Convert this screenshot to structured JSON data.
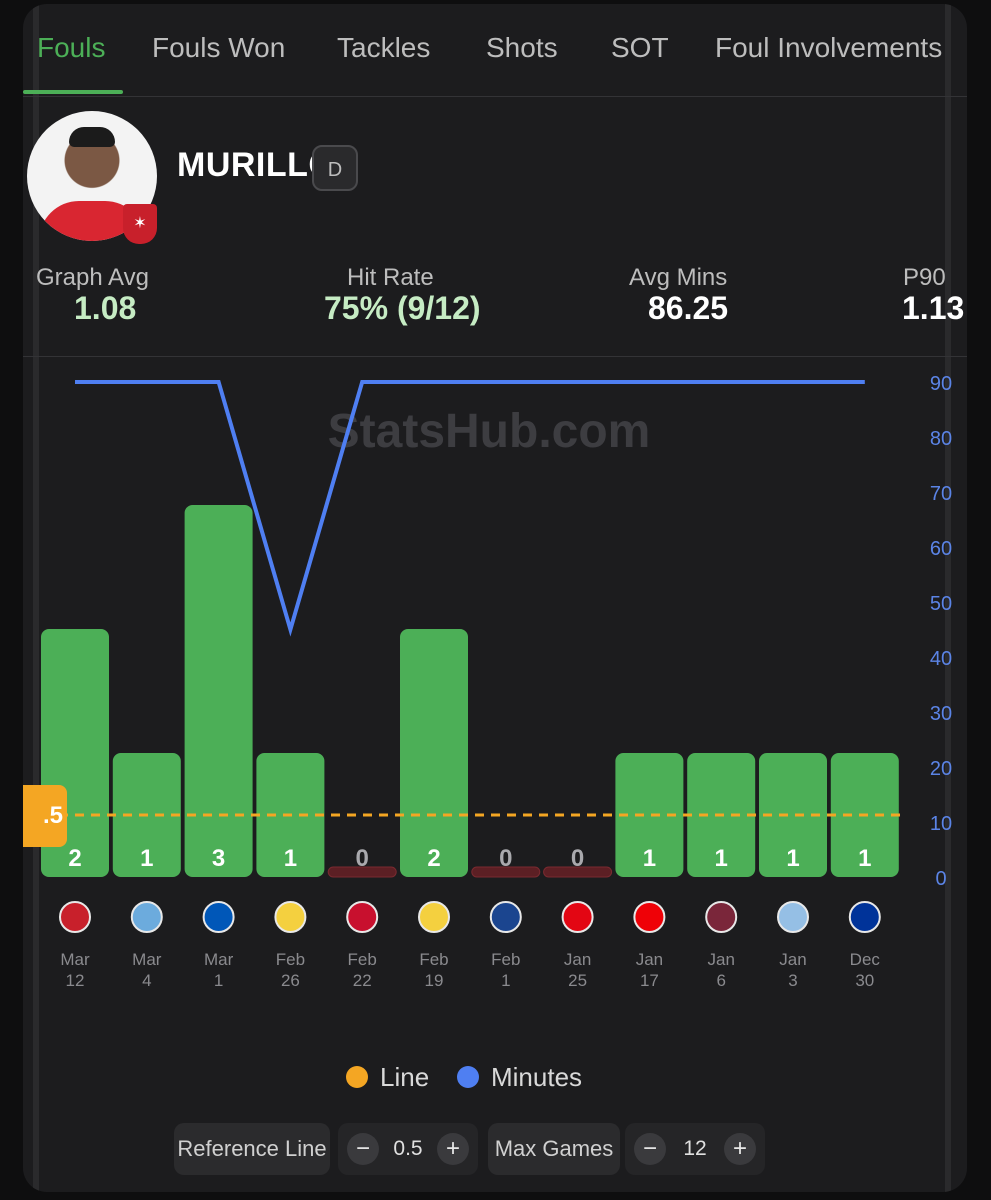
{
  "tabs": [
    {
      "label": "Fouls",
      "active": true
    },
    {
      "label": "Fouls Won",
      "active": false
    },
    {
      "label": "Tackles",
      "active": false
    },
    {
      "label": "Shots",
      "active": false
    },
    {
      "label": "SOT",
      "active": false
    },
    {
      "label": "Foul Involvements",
      "active": false
    }
  ],
  "player": {
    "name": "MURILLO",
    "position": "D"
  },
  "stats": {
    "graph_avg": {
      "label": "Graph Avg",
      "value": "1.08"
    },
    "hit_rate": {
      "label": "Hit Rate",
      "value": "75% (9/12)"
    },
    "avg_mins": {
      "label": "Avg Mins",
      "value": "86.25"
    },
    "p90": {
      "label": "P90",
      "value": "1.13"
    }
  },
  "watermark": "StatsHub.com",
  "line_tag": ".5",
  "legend": {
    "line": "Line",
    "minutes": "Minutes"
  },
  "controls": {
    "reference_label": "Reference Line",
    "reference_value": "0.5",
    "max_games_label": "Max Games",
    "max_games_value": "12",
    "minus": "−",
    "plus": "+"
  },
  "colors": {
    "bar_hit": "#4caf57",
    "bar_miss": "#5c1f24",
    "minutes_line": "#4f7ff2",
    "reference_line": "#f4a623",
    "axis_text": "#5b84e6",
    "date_text": "#8a8a8e"
  },
  "chart_data": {
    "type": "bar",
    "categories": [
      {
        "month": "Mar",
        "day": "12",
        "opponent_icon": "midtjylland-crest-icon"
      },
      {
        "month": "Mar",
        "day": "4",
        "opponent_icon": "man-city-crest-icon"
      },
      {
        "month": "Mar",
        "day": "1",
        "opponent_icon": "brighton-crest-icon"
      },
      {
        "month": "Feb",
        "day": "26",
        "opponent_icon": "fenerbahce-crest-icon"
      },
      {
        "month": "Feb",
        "day": "22",
        "opponent_icon": "liverpool-crest-icon"
      },
      {
        "month": "Feb",
        "day": "19",
        "opponent_icon": "fenerbahce-crest-icon"
      },
      {
        "month": "Feb",
        "day": "1",
        "opponent_icon": "crystal-palace-crest-icon"
      },
      {
        "month": "Jan",
        "day": "25",
        "opponent_icon": "brentford-crest-icon"
      },
      {
        "month": "Jan",
        "day": "17",
        "opponent_icon": "arsenal-crest-icon"
      },
      {
        "month": "Jan",
        "day": "6",
        "opponent_icon": "west-ham-crest-icon"
      },
      {
        "month": "Jan",
        "day": "3",
        "opponent_icon": "aston-villa-crest-icon"
      },
      {
        "month": "Dec",
        "day": "30",
        "opponent_icon": "everton-crest-icon"
      }
    ],
    "series": [
      {
        "name": "Fouls",
        "values": [
          2,
          1,
          3,
          1,
          0,
          2,
          0,
          0,
          1,
          1,
          1,
          1
        ]
      },
      {
        "name": "Minutes",
        "values": [
          90,
          90,
          90,
          45,
          90,
          90,
          90,
          90,
          90,
          90,
          90,
          90
        ]
      }
    ],
    "reference_line": 0.5,
    "right_axis": {
      "ticks": [
        0,
        10,
        20,
        30,
        40,
        50,
        60,
        70,
        80,
        90
      ],
      "range": [
        0,
        90
      ]
    },
    "left_axis_range": [
      0,
      4
    ],
    "legend_position": "bottom-center"
  }
}
